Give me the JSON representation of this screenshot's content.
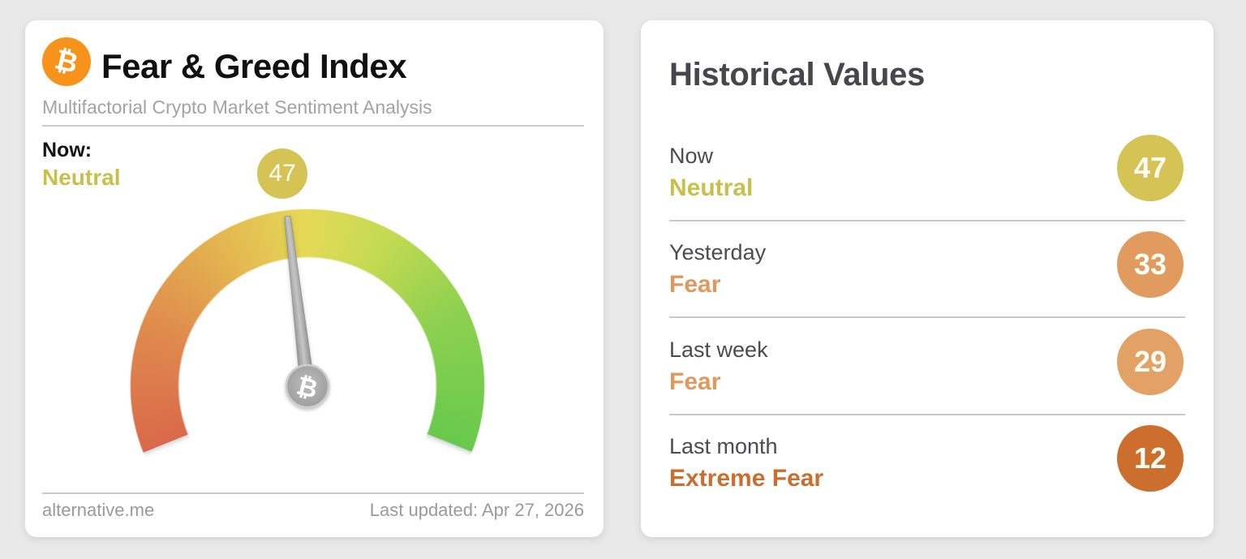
{
  "page": {
    "background_color": "#e9e9e9"
  },
  "gauge_card": {
    "logo_icon": "bitcoin-icon",
    "logo_glyph": "₿",
    "logo_color": "#f7931a",
    "title": "Fear & Greed Index",
    "subtitle": "Multifactorial Crypto Market Sentiment Analysis",
    "now_label": "Now:",
    "now_classification": "Neutral",
    "now_value": "47",
    "footer_left": "alternative.me",
    "footer_right": "Last updated: Apr 27, 2026"
  },
  "history_card": {
    "title": "Historical Values",
    "rows": [
      {
        "label": "Now",
        "classification": "Neutral",
        "value": "47",
        "text_color": "#c9bf4b",
        "badge_color": "#d5c355"
      },
      {
        "label": "Yesterday",
        "classification": "Fear",
        "value": "33",
        "text_color": "#e0985c",
        "badge_color": "#e29b5e"
      },
      {
        "label": "Last week",
        "classification": "Fear",
        "value": "29",
        "text_color": "#e0985c",
        "badge_color": "#e2a266"
      },
      {
        "label": "Last month",
        "classification": "Extreme Fear",
        "value": "12",
        "text_color": "#c96e2e",
        "badge_color": "#cb6e2e"
      }
    ]
  },
  "chart_data": {
    "type": "gauge",
    "title": "Fear & Greed Index",
    "value": 47,
    "min": 0,
    "max": 100,
    "classification": "Neutral",
    "classification_color": "#c9bf4b",
    "last_updated": "Apr 27, 2026",
    "arc_span_degrees": 224,
    "scale_colors": [
      "#d9694a",
      "#df8a4d",
      "#e4b750",
      "#e5d957",
      "#c3da52",
      "#8ed150",
      "#67c94c"
    ],
    "needle_color": "#a6a6a6",
    "history": [
      {
        "label": "Now",
        "value": 47,
        "classification": "Neutral"
      },
      {
        "label": "Yesterday",
        "value": 33,
        "classification": "Fear"
      },
      {
        "label": "Last week",
        "value": 29,
        "classification": "Fear"
      },
      {
        "label": "Last month",
        "value": 12,
        "classification": "Extreme Fear"
      }
    ]
  }
}
